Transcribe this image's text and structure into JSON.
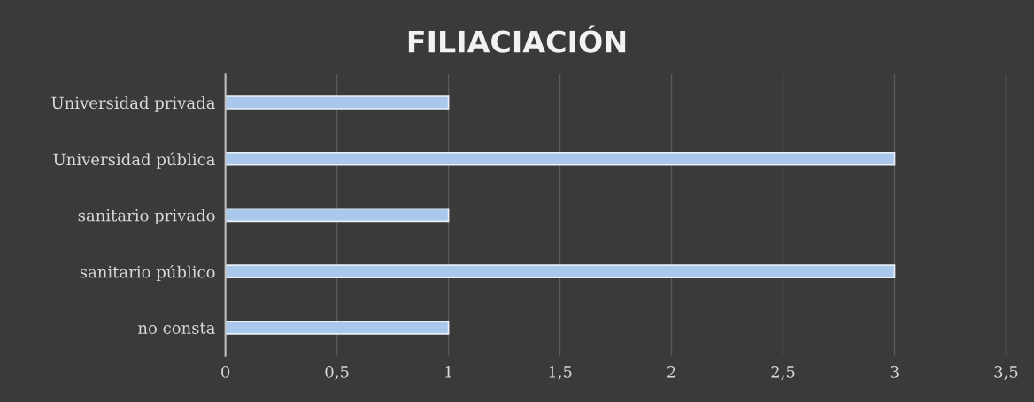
{
  "chart_data": {
    "type": "bar",
    "orientation": "horizontal",
    "title": "FILIACIACIÓN",
    "categories": [
      "Universidad privada",
      "Universidad pública",
      "sanitario privado",
      "sanitario público",
      "no consta"
    ],
    "values": [
      1,
      3,
      1,
      3,
      1
    ],
    "color": "#a9c8ec",
    "xlim": [
      0,
      3.5
    ],
    "xticks": [
      0,
      {
        "value": 0.5,
        "label": "0,5"
      },
      1,
      {
        "value": 1.5,
        "label": "1,5"
      },
      2,
      {
        "value": 2.5,
        "label": "2,5"
      },
      3,
      {
        "value": 3.5,
        "label": "3,5"
      }
    ],
    "grid": "x",
    "legend": false
  }
}
